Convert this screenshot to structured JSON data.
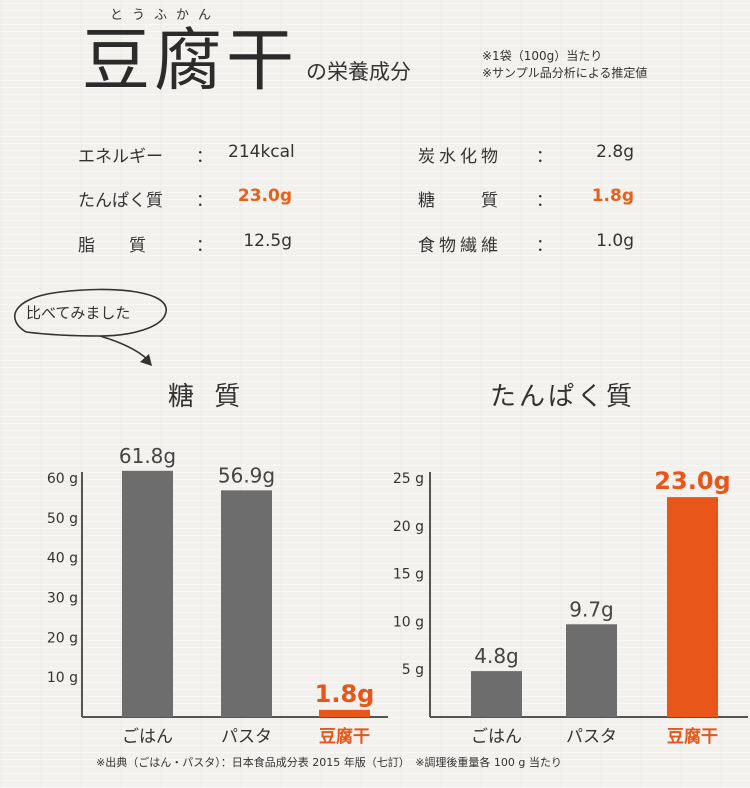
{
  "header": {
    "ruby": "とうふかん",
    "title": "豆腐干",
    "subtitle": "の栄養成分",
    "note1": "※1袋（100g）当たり",
    "note2": "※サンプル品分析による推定値"
  },
  "nutrition": [
    {
      "label": "エネルギー",
      "colon": "：",
      "value": "214kcal",
      "highlight": false
    },
    {
      "label": "たんぱく質",
      "colon": "：",
      "value": "23.0g",
      "highlight": true
    },
    {
      "label": "脂　　質",
      "colon": "：",
      "value": "12.5g",
      "highlight": false
    },
    {
      "label": "炭水化物",
      "colon": "：",
      "value": "2.8g",
      "highlight": false
    },
    {
      "label": "糖　　質",
      "colon": "：",
      "value": "1.8g",
      "highlight": true
    },
    {
      "label": "食物繊維",
      "colon": "：",
      "value": "1.0g",
      "highlight": false
    }
  ],
  "compare_label": "比べてみました",
  "colors": {
    "gray": "#6e6d6e",
    "orange": "#e8561a",
    "axis": "#555555"
  },
  "chart_data": [
    {
      "type": "bar",
      "title": "糖 質",
      "categories": [
        "ごはん",
        "パスタ",
        "豆腐干"
      ],
      "values": [
        61.8,
        56.9,
        1.8
      ],
      "data_labels": [
        "61.8g",
        "56.9g",
        "1.8g"
      ],
      "highlight_index": 2,
      "yticks": [
        10,
        20,
        30,
        40,
        50,
        60
      ],
      "ytick_labels": [
        "10 g",
        "20 g",
        "30 g",
        "40 g",
        "50 g",
        "60 g"
      ],
      "ylim": [
        0,
        60
      ],
      "grid": false
    },
    {
      "type": "bar",
      "title": "たんぱく質",
      "categories": [
        "ごはん",
        "パスタ",
        "豆腐干"
      ],
      "values": [
        4.8,
        9.7,
        23.0
      ],
      "data_labels": [
        "4.8g",
        "9.7g",
        "23.0g"
      ],
      "highlight_index": 2,
      "yticks": [
        5,
        10,
        15,
        20,
        25
      ],
      "ytick_labels": [
        "5 g",
        "10 g",
        "15 g",
        "20 g",
        "25 g"
      ],
      "ylim": [
        0,
        25
      ],
      "grid": false
    }
  ],
  "footnote": "※出典（ごはん・パスタ）：日本食品成分表 2015 年版（七訂）　※調理後重量各 100 g 当たり"
}
